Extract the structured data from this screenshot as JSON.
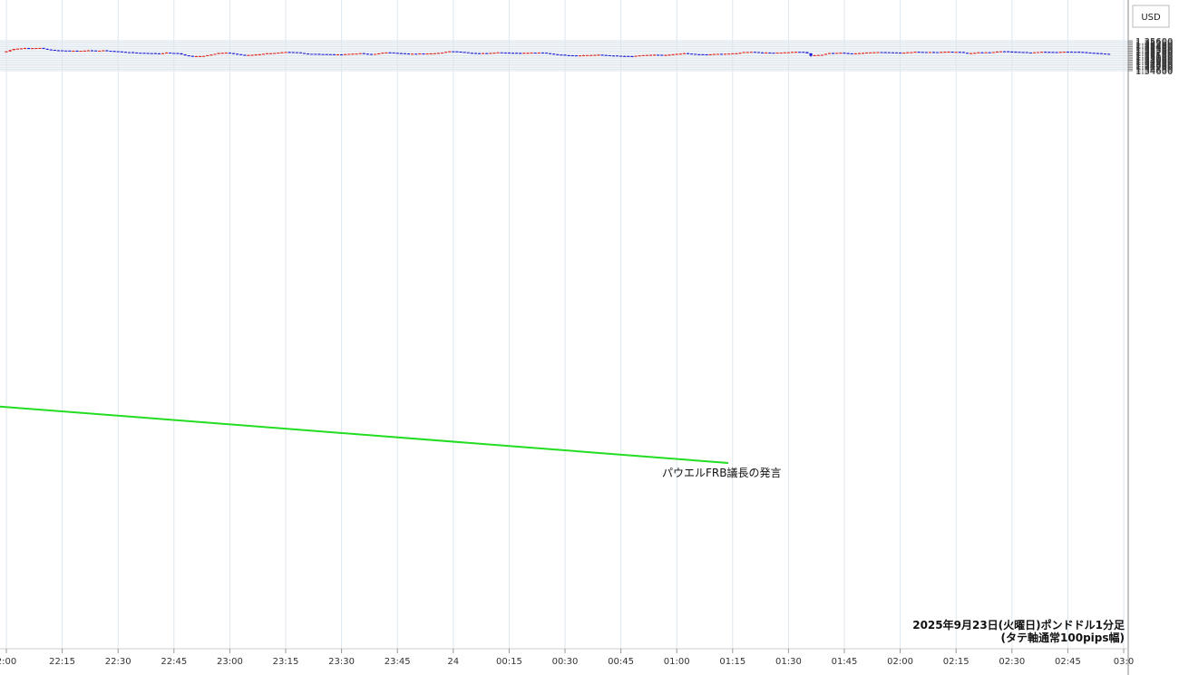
{
  "chart_data": {
    "type": "candlestick",
    "currency_label": "USD",
    "caption_line1": "2025年9月23日(火曜日)ポンドドル1分足",
    "caption_line2": "(タテ軸通常100pips幅)",
    "annotation": {
      "text": "パウエルFRB議長の発言",
      "time": "01:37",
      "price": 1.35155
    },
    "x_ticks": [
      "2:00",
      "22:15",
      "22:30",
      "22:45",
      "23:00",
      "23:15",
      "23:30",
      "23:45",
      "24",
      "00:15",
      "00:30",
      "00:45",
      "01:00",
      "01:15",
      "01:30",
      "01:45",
      "02:00",
      "02:15",
      "02:30",
      "02:45",
      "03:0"
    ],
    "y_ticks": [
      "1.35600",
      "1.35550",
      "1.35500",
      "1.35450",
      "1.35400",
      "1.35350",
      "1.35300",
      "1.35250",
      "1.35200",
      "1.35150",
      "1.35100",
      "1.35050",
      "1.35000",
      "1.34950",
      "1.34900",
      "1.34850",
      "1.34800",
      "1.34750",
      "1.34700",
      "1.34650",
      "1.34600"
    ],
    "ylim": [
      1.346,
      1.356
    ],
    "grid": true,
    "colors": {
      "up": "#e0201a",
      "down": "#1a1ad6",
      "grid": "#dde6ee",
      "annotation_line": "#22dd22",
      "axis": "#999999"
    },
    "price_path": [
      [
        "22:00",
        1.35245
      ],
      [
        "22:02",
        1.3533
      ],
      [
        "22:04",
        1.35345
      ],
      [
        "22:05",
        1.35355
      ],
      [
        "22:07",
        1.3535
      ],
      [
        "22:08",
        1.35355
      ],
      [
        "22:09",
        1.3536
      ],
      [
        "22:11",
        1.35305
      ],
      [
        "22:13",
        1.35285
      ],
      [
        "22:16",
        1.3527
      ],
      [
        "22:19",
        1.35265
      ],
      [
        "22:22",
        1.35275
      ],
      [
        "22:24",
        1.35265
      ],
      [
        "22:26",
        1.35275
      ],
      [
        "22:29",
        1.3525
      ],
      [
        "22:32",
        1.3522
      ],
      [
        "22:35",
        1.352
      ],
      [
        "22:38",
        1.3519
      ],
      [
        "22:41",
        1.35175
      ],
      [
        "22:43",
        1.352
      ],
      [
        "22:46",
        1.3518
      ],
      [
        "22:48",
        1.3511
      ],
      [
        "22:50",
        1.3508
      ],
      [
        "22:53",
        1.35095
      ],
      [
        "22:55",
        1.3514
      ],
      [
        "22:57",
        1.3519
      ],
      [
        "22:59",
        1.352
      ],
      [
        "23:02",
        1.3515
      ],
      [
        "23:04",
        1.3511
      ],
      [
        "23:06",
        1.3513
      ],
      [
        "23:08",
        1.3515
      ],
      [
        "23:10",
        1.3518
      ],
      [
        "23:13",
        1.352
      ],
      [
        "23:15",
        1.3522
      ],
      [
        "23:18",
        1.3521
      ],
      [
        "23:20",
        1.3517
      ],
      [
        "23:23",
        1.3516
      ],
      [
        "23:26",
        1.3515
      ],
      [
        "23:29",
        1.3514
      ],
      [
        "23:32",
        1.3516
      ],
      [
        "23:35",
        1.3518
      ],
      [
        "23:38",
        1.3514
      ],
      [
        "23:41",
        1.352
      ],
      [
        "23:43",
        1.3521
      ],
      [
        "23:46",
        1.3518
      ],
      [
        "23:48",
        1.3516
      ],
      [
        "23:51",
        1.3517
      ],
      [
        "23:54",
        1.3518
      ],
      [
        "23:57",
        1.352
      ],
      [
        "23:59",
        1.3525
      ],
      [
        "24:01",
        1.3524
      ],
      [
        "24:04",
        1.352
      ],
      [
        "24:07",
        1.3518
      ],
      [
        "24:09",
        1.3519
      ],
      [
        "24:12",
        1.3521
      ],
      [
        "24:15",
        1.352
      ],
      [
        "24:18",
        1.3519
      ],
      [
        "24:21",
        1.352
      ],
      [
        "24:24",
        1.352
      ],
      [
        "24:27",
        1.3515
      ],
      [
        "24:30",
        1.3512
      ],
      [
        "24:33",
        1.3511
      ],
      [
        "24:36",
        1.3512
      ],
      [
        "24:39",
        1.3513
      ],
      [
        "24:42",
        1.3511
      ],
      [
        "24:45",
        1.3509
      ],
      [
        "24:48",
        1.3508
      ],
      [
        "24:51",
        1.3512
      ],
      [
        "24:54",
        1.3513
      ],
      [
        "24:57",
        1.3512
      ],
      [
        "25:00",
        1.3516
      ],
      [
        "25:02",
        1.3518
      ],
      [
        "25:05",
        1.3515
      ],
      [
        "25:08",
        1.3514
      ],
      [
        "25:11",
        1.3516
      ],
      [
        "25:14",
        1.3517
      ],
      [
        "25:16",
        1.3518
      ],
      [
        "25:18",
        1.3522
      ],
      [
        "25:20",
        1.3523
      ],
      [
        "25:23",
        1.352
      ],
      [
        "25:26",
        1.352
      ],
      [
        "25:29",
        1.3521
      ],
      [
        "25:32",
        1.3523
      ],
      [
        "25:34",
        1.3522
      ],
      [
        "25:35",
        1.3518
      ],
      [
        "25:37",
        1.3512
      ],
      [
        "25:39",
        1.3513
      ],
      [
        "25:41",
        1.3519
      ],
      [
        "25:44",
        1.352
      ],
      [
        "25:47",
        1.3517
      ],
      [
        "25:49",
        1.3519
      ],
      [
        "25:52",
        1.3521
      ],
      [
        "25:55",
        1.3522
      ],
      [
        "25:58",
        1.3521
      ],
      [
        "26:01",
        1.352
      ],
      [
        "26:04",
        1.3523
      ],
      [
        "26:07",
        1.3522
      ],
      [
        "26:10",
        1.3522
      ],
      [
        "26:13",
        1.3523
      ],
      [
        "26:16",
        1.3522
      ],
      [
        "26:18",
        1.3518
      ],
      [
        "26:21",
        1.3521
      ],
      [
        "26:24",
        1.3521
      ],
      [
        "26:27",
        1.3525
      ],
      [
        "26:30",
        1.3523
      ],
      [
        "26:33",
        1.3522
      ],
      [
        "26:35",
        1.352
      ],
      [
        "26:38",
        1.3523
      ],
      [
        "26:41",
        1.3522
      ],
      [
        "26:44",
        1.3523
      ],
      [
        "26:47",
        1.3523
      ],
      [
        "26:50",
        1.3521
      ],
      [
        "26:53",
        1.3518
      ],
      [
        "26:56",
        1.3515
      ]
    ]
  }
}
